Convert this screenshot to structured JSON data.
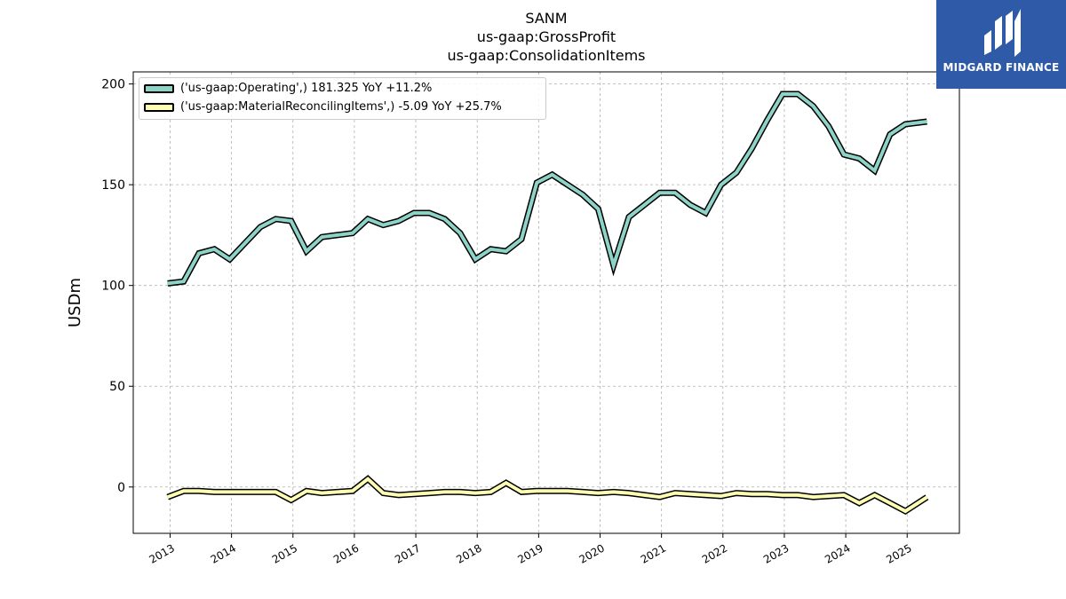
{
  "titles": [
    "SANM",
    "us-gaap:GrossProfit",
    "us-gaap:ConsolidationItems"
  ],
  "logo": {
    "text": "MIDGARD FINANCE",
    "bg_color": "#2e5aa8"
  },
  "chart_data": {
    "type": "line",
    "ylabel": "USDm",
    "xlabel": "",
    "ylim": [
      -23,
      206
    ],
    "xlim": [
      2012.4,
      2025.85
    ],
    "yticks": [
      0,
      50,
      100,
      150,
      200
    ],
    "xticks": [
      "2013",
      "2014",
      "2015",
      "2016",
      "2017",
      "2018",
      "2019",
      "2020",
      "2021",
      "2022",
      "2023",
      "2024",
      "2025"
    ],
    "grid": true,
    "legend_position": "top-left",
    "series": [
      {
        "name": "('us-gaap:Operating',) 181.325 YoY +11.2%",
        "color": "#8dd3c7",
        "x": [
          2012.96,
          2013.22,
          2013.47,
          2013.72,
          2013.97,
          2014.22,
          2014.47,
          2014.72,
          2014.97,
          2015.22,
          2015.47,
          2015.72,
          2015.97,
          2016.22,
          2016.47,
          2016.72,
          2016.97,
          2017.22,
          2017.47,
          2017.72,
          2017.97,
          2018.22,
          2018.47,
          2018.72,
          2018.97,
          2019.22,
          2019.47,
          2019.72,
          2019.97,
          2020.22,
          2020.47,
          2020.72,
          2020.97,
          2021.22,
          2021.47,
          2021.72,
          2021.97,
          2022.22,
          2022.47,
          2022.72,
          2022.97,
          2023.22,
          2023.47,
          2023.72,
          2023.97,
          2024.22,
          2024.47,
          2024.72,
          2024.97,
          2025.32
        ],
        "y": [
          101,
          102,
          116,
          118,
          113,
          121,
          129,
          133,
          132,
          117,
          124,
          125,
          126,
          133,
          130,
          132,
          136,
          136,
          133,
          126,
          113,
          118,
          117,
          123,
          151,
          155,
          150,
          145,
          138,
          110,
          134,
          140,
          146,
          146,
          140,
          136,
          150,
          156,
          168,
          182,
          195,
          195,
          189,
          179,
          165,
          163,
          157,
          175,
          180,
          181.325
        ]
      },
      {
        "name": "('us-gaap:MaterialReconcilingItems',) -5.09 YoY +25.7%",
        "color": "#ffffb3",
        "x": [
          2012.96,
          2013.22,
          2013.47,
          2013.72,
          2013.97,
          2014.22,
          2014.47,
          2014.72,
          2014.97,
          2015.22,
          2015.47,
          2015.72,
          2015.97,
          2016.22,
          2016.47,
          2016.72,
          2016.97,
          2017.22,
          2017.47,
          2017.72,
          2017.97,
          2018.22,
          2018.47,
          2018.72,
          2018.97,
          2019.22,
          2019.47,
          2019.72,
          2019.97,
          2020.22,
          2020.47,
          2020.72,
          2020.97,
          2021.22,
          2021.47,
          2021.72,
          2021.97,
          2022.22,
          2022.47,
          2022.72,
          2022.97,
          2023.22,
          2023.47,
          2023.72,
          2023.97,
          2024.22,
          2024.47,
          2024.72,
          2024.97,
          2025.32
        ],
        "y": [
          -5,
          -2,
          -2,
          -2.5,
          -2.5,
          -2.5,
          -2.5,
          -2.5,
          -6.5,
          -2,
          -3,
          -2.5,
          -2,
          4,
          -3,
          -4,
          -3.5,
          -3,
          -2.5,
          -2.5,
          -3,
          -2.5,
          2,
          -2.5,
          -2,
          -2,
          -2,
          -2.5,
          -3,
          -2.5,
          -3,
          -4,
          -5,
          -3,
          -3.5,
          -4,
          -4.5,
          -3,
          -3.5,
          -3.5,
          -4,
          -4,
          -5,
          -4.5,
          -4,
          -8,
          -4,
          -8,
          -12,
          -5.09
        ]
      }
    ]
  }
}
